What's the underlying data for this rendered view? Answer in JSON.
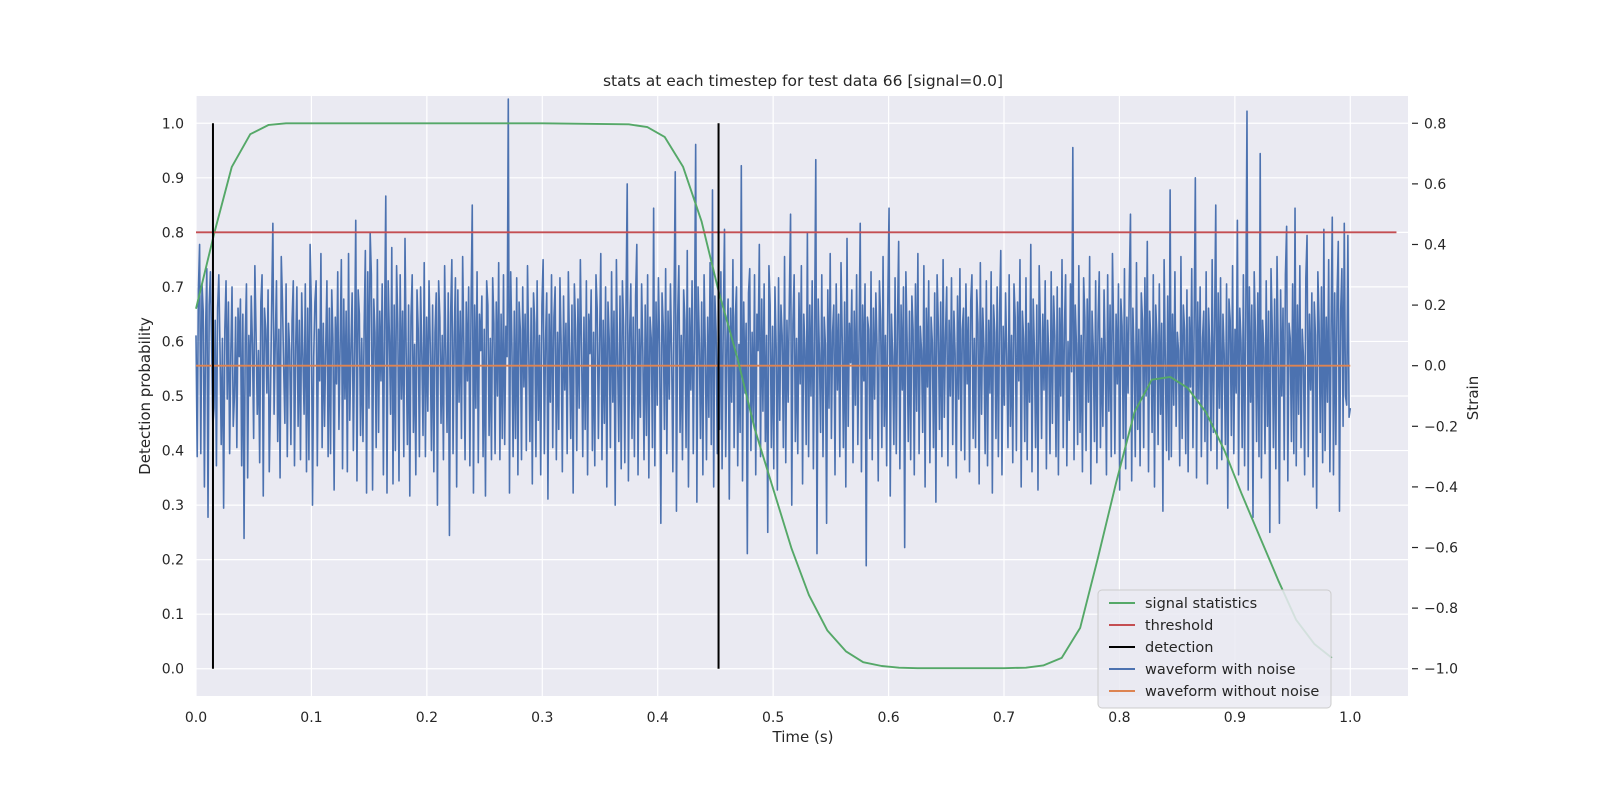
{
  "chart_data": {
    "type": "line",
    "title": "stats at each timestep for test data 66 [signal=0.0]",
    "xlabel": "Time (s)",
    "ylabel": "Detection probability",
    "y2label": "Strain",
    "xlim": [
      0.0,
      1.05
    ],
    "ylim": [
      -0.05,
      1.05
    ],
    "y2lim": [
      -1.09,
      0.89
    ],
    "xticks": [
      "0.0",
      "0.1",
      "0.2",
      "0.3",
      "0.4",
      "0.5",
      "0.6",
      "0.7",
      "0.8",
      "0.9",
      "1.0"
    ],
    "yticks": [
      "0.0",
      "0.1",
      "0.2",
      "0.3",
      "0.4",
      "0.5",
      "0.6",
      "0.7",
      "0.8",
      "0.9",
      "1.0"
    ],
    "y2ticks": [
      "−1.0",
      "−0.8",
      "−0.6",
      "−0.4",
      "−0.2",
      "0.0",
      "0.2",
      "0.4",
      "0.6",
      "0.8"
    ],
    "grid": true,
    "legend_position": "bottom-right",
    "colors": {
      "background": "#eaeaf2",
      "grid": "#ffffff",
      "signal": "#55a868",
      "threshold": "#c44e52",
      "detection": "#000000",
      "noisy": "#4c72b0",
      "clean": "#dd8452"
    },
    "series": [
      {
        "name": "signal statistics",
        "axis": "left",
        "x": [
          0.0,
          0.016,
          0.031,
          0.047,
          0.063,
          0.078,
          0.094,
          0.125,
          0.2,
          0.3,
          0.375,
          0.391,
          0.406,
          0.422,
          0.438,
          0.453,
          0.469,
          0.484,
          0.5,
          0.516,
          0.531,
          0.547,
          0.563,
          0.578,
          0.594,
          0.609,
          0.625,
          0.641,
          0.656,
          0.7,
          0.719,
          0.734,
          0.75,
          0.766,
          0.781,
          0.797,
          0.813,
          0.828,
          0.844,
          0.859,
          0.875,
          0.891,
          0.906,
          0.922,
          0.938,
          0.953,
          0.969,
          0.984
        ],
        "y": [
          0.66,
          0.8,
          0.92,
          0.98,
          0.997,
          1.0,
          1.0,
          1.0,
          1.0,
          1.0,
          0.998,
          0.993,
          0.975,
          0.92,
          0.82,
          0.69,
          0.57,
          0.44,
          0.33,
          0.22,
          0.135,
          0.07,
          0.032,
          0.012,
          0.005,
          0.002,
          0.001,
          0.001,
          0.001,
          0.001,
          0.002,
          0.006,
          0.02,
          0.075,
          0.2,
          0.34,
          0.47,
          0.53,
          0.535,
          0.515,
          0.47,
          0.4,
          0.32,
          0.24,
          0.16,
          0.09,
          0.045,
          0.02
        ]
      },
      {
        "name": "threshold",
        "axis": "left",
        "x": [
          0.0,
          1.04
        ],
        "y": [
          0.8,
          0.8
        ]
      },
      {
        "name": "detection",
        "axis": "left",
        "x": [
          0.0147,
          0.4527
        ],
        "y": [
          0.0,
          1.0
        ]
      },
      {
        "name": "waveform with noise",
        "axis": "right",
        "x_range": [
          0.0,
          1.0
        ],
        "y": [
          0.1,
          -0.3,
          0.25,
          0.4,
          -0.29,
          0.27,
          0.18,
          -0.4,
          0.12,
          0.32,
          -0.5,
          0.2,
          0.31,
          0.08,
          -0.2,
          -0.14,
          0.15,
          -0.33,
          0.19,
          0.3,
          0.05,
          -0.26,
          0.09,
          -0.47,
          0.12,
          0.28,
          -0.11,
          0.21,
          -0.29,
          0.04,
          0.26,
          -0.2,
          -0.1,
          0.16,
          -0.27,
          0.19,
          0.03,
          0.22,
          -0.33,
          0.17,
          -0.57,
          0.09,
          0.27,
          -0.37,
          0.1,
          -0.1,
          0.23,
          0.07,
          -0.24,
          0.33,
          0.11,
          -0.16,
          0.05,
          -0.32,
          0.21,
          0.3,
          -0.43,
          0.19,
          0.12,
          -0.09,
          0.25,
          -0.35,
          -0.1,
          0.2,
          0.47,
          -0.16,
          0.08,
          0.28,
          -0.25,
          0.12,
          -0.37,
          0.36,
          0.21,
          -0.01,
          -0.19,
          0.27,
          -0.3,
          0.14,
          0.05,
          -0.26,
          0.15,
          0.28,
          -0.33,
          0.06,
          0.26,
          -0.2,
          0.15,
          -0.31,
          0.24,
          0.03,
          -0.16,
          0.27,
          -0.35,
          0.19,
          -0.31,
          0.4,
          0.2,
          -0.46,
          0.03,
          0.21,
          0.28,
          -0.33,
          0.12,
          -0.05,
          0.37,
          -0.27,
          0.14,
          -0.2,
          0.06,
          0.28,
          -0.3,
          0.19,
          -0.29,
          0.25,
          0.09,
          -0.41,
          0.16,
          -0.06,
          0.31,
          -0.21,
          0.07,
          0.35,
          -0.34,
          0.22,
          -0.11,
          0.18,
          -0.35,
          0.37,
          -0.18,
          0.06,
          0.24,
          -0.28,
          0.05,
          0.48,
          -0.38,
          0.25,
          0.17,
          -0.23,
          0.09,
          -0.25,
          0.13,
          0.38,
          -0.42,
          0.31,
          -0.14,
          0.44,
          0.3,
          -0.41,
          0.22,
          0.11,
          -0.27,
          0.35,
          -0.22,
          0.18,
          -0.05,
          0.27,
          -0.36,
          0.14,
          0.56,
          -0.42,
          0.28,
          0.1,
          -0.16,
          0.39,
          -0.39,
          0.2,
          -0.28,
          0.33,
          0.14,
          -0.38,
          0.3,
          -0.11,
          0.18,
          -0.3,
          0.42,
          0.04,
          -0.26,
          0.2,
          -0.43,
          0.16,
          0.3,
          -0.22,
          0.07,
          -0.36,
          0.25,
          0.12,
          -0.3,
          0.26,
          0.04,
          -0.23,
          0.34,
          -0.3,
          0.16,
          -0.15,
          0.28,
          0.07,
          -0.28,
          0.2,
          -0.35,
          0.11,
          0.24,
          -0.46,
          0.28,
          0.16,
          -0.19,
          0.1,
          -0.31,
          0.33,
          0.04,
          -0.22,
          0.24,
          -0.56,
          0.17,
          0.35,
          -0.29,
          0.1,
          0.29,
          -0.4,
          0.25,
          -0.12,
          0.18,
          -0.24,
          0.36,
          0.07,
          -0.31,
          0.21,
          -0.05,
          0.26,
          -0.33,
          0.2,
          0.53,
          -0.42,
          0.2,
          -0.14,
          0.31,
          -0.32,
          0.17,
          0.05,
          0.23,
          -0.3,
          0.12,
          -0.43,
          0.28,
          0.2,
          -0.23,
          0.09,
          -0.31,
          0.29,
          0.14,
          -0.29,
          0.21,
          -0.1,
          0.34,
          -0.31,
          0.17,
          -0.24,
          0.3,
          -0.26,
          0.13,
          0.03,
          0.88,
          -0.42,
          0.31,
          0.07,
          -0.3,
          0.18,
          -0.24,
          0.29,
          -0.36,
          0.21,
          0.12,
          -0.31,
          0.26,
          -0.07,
          0.17,
          -0.28,
          0.33,
          0.06,
          -0.25,
          0.19,
          -0.39,
          0.24,
          0.14,
          -0.3,
          0.28,
          -0.18,
          0.1,
          -0.36,
          0.2,
          0.35,
          -0.29,
          0.08,
          0.24,
          -0.44,
          0.17,
          -0.12,
          0.3,
          -0.27,
          0.16,
          0.26,
          -0.31,
          0.11,
          -0.21,
          0.29,
          0.07,
          -0.35,
          0.23,
          -0.08,
          0.14,
          -0.29,
          0.31,
          0.05,
          -0.24,
          0.2,
          -0.42,
          0.27,
          0.12,
          -0.28,
          0.22,
          -0.14,
          0.35,
          0.06,
          -0.3,
          0.16,
          -0.21,
          0.28,
          -0.36,
          0.17,
          0.04,
          0.25,
          -0.28,
          0.11,
          -0.33,
          0.3,
          0.19,
          -0.24,
          0.08,
          0.37,
          -0.31,
          0.15,
          -0.19,
          0.26,
          -0.4,
          0.21,
          0.09,
          -0.27,
          0.31,
          -0.12,
          0.18,
          -0.46,
          0.35,
          0.02,
          -0.25,
          0.23,
          -0.34,
          0.28,
          0.13,
          -0.32,
          0.19,
          0.6,
          -0.38,
          0.1,
          0.27,
          -0.24,
          0.16,
          -0.3,
          0.23,
          0.4,
          -0.36,
          0.12,
          -0.17,
          0.27,
          0.05,
          -0.31,
          0.2,
          -0.23,
          0.3,
          -0.37,
          0.16,
          0.09,
          -0.27,
          0.52,
          -0.33,
          0.21,
          -0.13,
          0.29,
          0.06,
          -0.52,
          0.24,
          0.13,
          -0.21,
          0.32,
          -0.29,
          0.18,
          -0.11,
          0.27,
          0.04,
          -0.35,
          0.2,
          0.64,
          -0.48,
          0.16,
          0.33,
          -0.22,
          0.1,
          -0.31,
          0.25,
          0.15,
          -0.27,
          0.38,
          -0.4,
          0.19,
          -0.08,
          0.28,
          -0.29,
          0.12,
          0.73,
          -0.45,
          0.26,
          0.09,
          -0.24,
          0.21,
          -0.36,
          0.3,
          0.06,
          -0.31,
          0.16,
          -0.17,
          0.34,
          -0.26,
          0.58,
          -0.4,
          0.23,
          0.11,
          -0.29,
          0.18,
          -0.21,
          0.31,
          -0.34,
          0.15,
          0.45,
          -0.3,
          0.08,
          0.22,
          -0.44,
          0.19,
          -0.12,
          0.35,
          -0.27,
          0.16,
          0.26,
          -0.33,
          0.07,
          -0.22,
          0.66,
          -0.38,
          0.21,
          -0.09,
          0.14,
          -0.62,
          0.24,
          0.32,
          -0.28,
          0.11,
          -0.19,
          0.3,
          -0.36,
          0.17,
          0.05,
          0.4,
          -0.3,
          0.22,
          -0.15,
          0.27,
          -0.25,
          0.1,
          -0.55,
          0.33,
          0.2,
          -0.27,
          0.13,
          -0.34,
          0.26,
          0.06,
          -0.41,
          0.29,
          -0.18,
          0.2,
          0.1,
          -0.27,
          0.36,
          -0.32,
          0.15,
          -0.12,
          0.22,
          0.5,
          -0.46,
          0.14,
          0.3,
          -0.25,
          0.09,
          -0.29,
          0.24,
          -0.06,
          0.33,
          -0.39,
          0.17,
          0.05,
          -0.26,
          0.44,
          -0.3,
          0.2,
          -0.1,
          0.28,
          -0.34,
          0.12,
          0.68,
          -0.62,
          0.22,
          0.04,
          -0.22,
          0.3,
          -0.3,
          0.16,
          0.07,
          -0.52,
          0.25,
          -0.14,
          0.37,
          -0.24,
          0.11,
          0.2,
          -0.36,
          0.27,
          -0.08,
          0.17,
          -0.3,
          0.34,
          0.09,
          -0.27,
          0.21,
          -0.4,
          0.42,
          -0.2,
          0.14,
          0.01,
          0.25,
          -0.32,
          0.18,
          -0.13,
          0.3,
          -0.26,
          0.08,
          0.47,
          -0.35,
          0.2,
          -0.05,
          0.27,
          -0.66,
          0.16,
          0.12,
          -0.24,
          0.31,
          -0.31,
          0.19,
          -0.11,
          0.24,
          0.06,
          -0.38,
          0.28,
          0.15,
          -0.27,
          0.36,
          -0.2,
          0.1,
          -0.33,
          0.22,
          0.52,
          -0.43,
          0.17,
          0.03,
          -0.26,
          0.29,
          -0.29,
          0.14,
          0.41,
          -0.34,
          0.2,
          -0.08,
          0.26,
          -0.6,
          0.31,
          0.09,
          -0.25,
          0.18,
          -0.31,
          0.23,
          0.12,
          -0.36,
          0.27,
          -0.15,
          0.37,
          -0.29,
          0.13,
          0.05,
          -0.22,
          0.33,
          -0.4,
          0.19,
          -0.07,
          0.28,
          -0.32,
          0.16,
          0.08,
          -0.27,
          0.24,
          -0.45,
          0.3,
          0.13,
          -0.21,
          0.21,
          -0.3,
          0.35,
          -0.17,
          0.1,
          0.26,
          -0.33,
          0.15,
          -0.1,
          0.29,
          -0.26,
          0.18,
          0.04,
          -0.37,
          0.23,
          -0.11,
          0.32,
          -0.28,
          0.12,
          0.19,
          -0.31,
          0.27,
          -0.06,
          0.16,
          -0.35,
          0.21,
          0.3,
          -0.24,
          0.09,
          -0.27,
          0.25,
          0.14,
          -0.39,
          0.34,
          -0.16,
          0.19,
          0.06,
          -0.29,
          0.28,
          -0.33,
          0.15,
          -0.09,
          0.31,
          -0.42,
          0.2,
          0.11,
          -0.24,
          0.26,
          -0.3,
          0.17,
          0.38,
          -0.36,
          0.13,
          -0.13,
          0.24,
          0.03,
          -0.27,
          0.3,
          -0.2,
          0.1,
          -0.32,
          0.27,
          0.16,
          -0.28,
          0.21,
          -0.05,
          0.35,
          -0.4,
          0.18,
          0.09,
          -0.25,
          0.29,
          -0.31,
          0.14,
          -0.12,
          0.4,
          -0.35,
          0.22,
          0.05,
          -0.27,
          0.2,
          -0.41,
          0.33,
          0.12,
          -0.24,
          0.17,
          -0.08,
          0.28,
          -0.34,
          0.15,
          0.03,
          -0.29,
          0.31,
          -0.19,
          0.23,
          0.1,
          -0.3,
          0.26,
          -0.36,
          0.19,
          -0.1,
          0.35,
          -0.27,
          0.12,
          0.3,
          -0.33,
          0.08,
          -0.18,
          0.27,
          -0.02,
          0.72,
          -0.31,
          0.2,
          0.07,
          -0.26,
          0.33,
          -0.22,
          0.1,
          -0.35,
          0.29,
          0.16,
          -0.28,
          0.22,
          -0.12,
          0.36,
          -0.39,
          0.18,
          0.06,
          -0.25,
          0.28,
          -0.32,
          0.14,
          0.31,
          -0.27,
          0.09,
          -0.2,
          0.25,
          0.04,
          -0.36,
          0.3,
          -0.15,
          0.2,
          -0.3,
          0.37,
          0.11,
          -0.29,
          0.17,
          -0.06,
          0.27,
          -0.41,
          0.22,
          0.13,
          -0.24,
          0.32,
          -0.34,
          0.16,
          -0.09,
          0.26,
          0.5,
          -0.38,
          0.19,
          0.03,
          -0.3,
          0.34,
          -0.21,
          0.12,
          -0.33,
          0.24,
          0.15,
          -0.27,
          0.29,
          -0.1,
          0.41,
          -0.35,
          0.18,
          0.07,
          -0.22,
          0.3,
          -0.4,
          0.2,
          0.1,
          -0.26,
          0.27,
          -0.16,
          0.14,
          -0.48,
          0.35,
          0.02,
          -0.28,
          0.23,
          -0.31,
          0.58,
          -0.3,
          0.17,
          -0.13,
          0.31,
          -0.2,
          0.11,
          0.05,
          -0.33,
          0.36,
          -0.24,
          0.2,
          0.12,
          -0.29,
          0.25,
          -0.35,
          0.16,
          -0.07,
          0.32,
          -0.27,
          0.14,
          0.62,
          -0.37,
          0.21,
          -0.11,
          0.26,
          -0.3,
          0.09,
          0.18,
          -0.25,
          0.31,
          -0.39,
          0.19,
          0.06,
          -0.28,
          0.35,
          -0.22,
          0.13,
          0.53,
          -0.34,
          0.24,
          -0.14,
          0.29,
          -0.31,
          0.17,
          0.04,
          -0.26,
          0.27,
          -0.47,
          0.22,
          0.15,
          -0.23,
          0.33,
          -0.29,
          0.12,
          -0.09,
          0.48,
          -0.36,
          0.19,
          0.08,
          -0.27,
          0.3,
          -0.33,
          0.16,
          0.84,
          -0.41,
          0.26,
          -0.12,
          0.2,
          -0.5,
          0.31,
          0.11,
          -0.25,
          0.24,
          -0.3,
          0.7,
          -0.37,
          0.15,
          0.06,
          -0.29,
          0.28,
          -0.2,
          0.18,
          -0.55,
          0.32,
          0.13,
          -0.27,
          0.22,
          -0.34,
          0.36,
          0.05,
          -0.52,
          0.25,
          -0.1,
          0.19,
          -0.31,
          0.3,
          0.46,
          -0.38,
          0.14,
          0.09,
          -0.25,
          0.27,
          -0.29,
          0.52,
          -0.33,
          0.2,
          -0.16,
          0.33,
          -0.27,
          0.12,
          0.03,
          -0.36,
          0.29,
          0.43,
          -0.3,
          0.17,
          -0.08,
          0.24,
          -0.4,
          0.21,
          0.1,
          -0.47,
          0.31,
          0.14,
          -0.22,
          0.26,
          -0.32,
          0.45,
          -0.28,
          0.16,
          -0.12,
          0.35,
          -0.35,
          0.12,
          0.49,
          -0.36,
          0.24,
          -0.26,
          0.23,
          0.41,
          -0.48,
          0.18,
          0.32,
          -0.2,
          0.47,
          -0.1,
          -0.13,
          0.43,
          -0.17,
          -0.14
        ]
      },
      {
        "name": "waveform without noise",
        "axis": "right",
        "x": [
          0.0,
          1.0
        ],
        "y": [
          0.0,
          0.0
        ]
      }
    ]
  }
}
